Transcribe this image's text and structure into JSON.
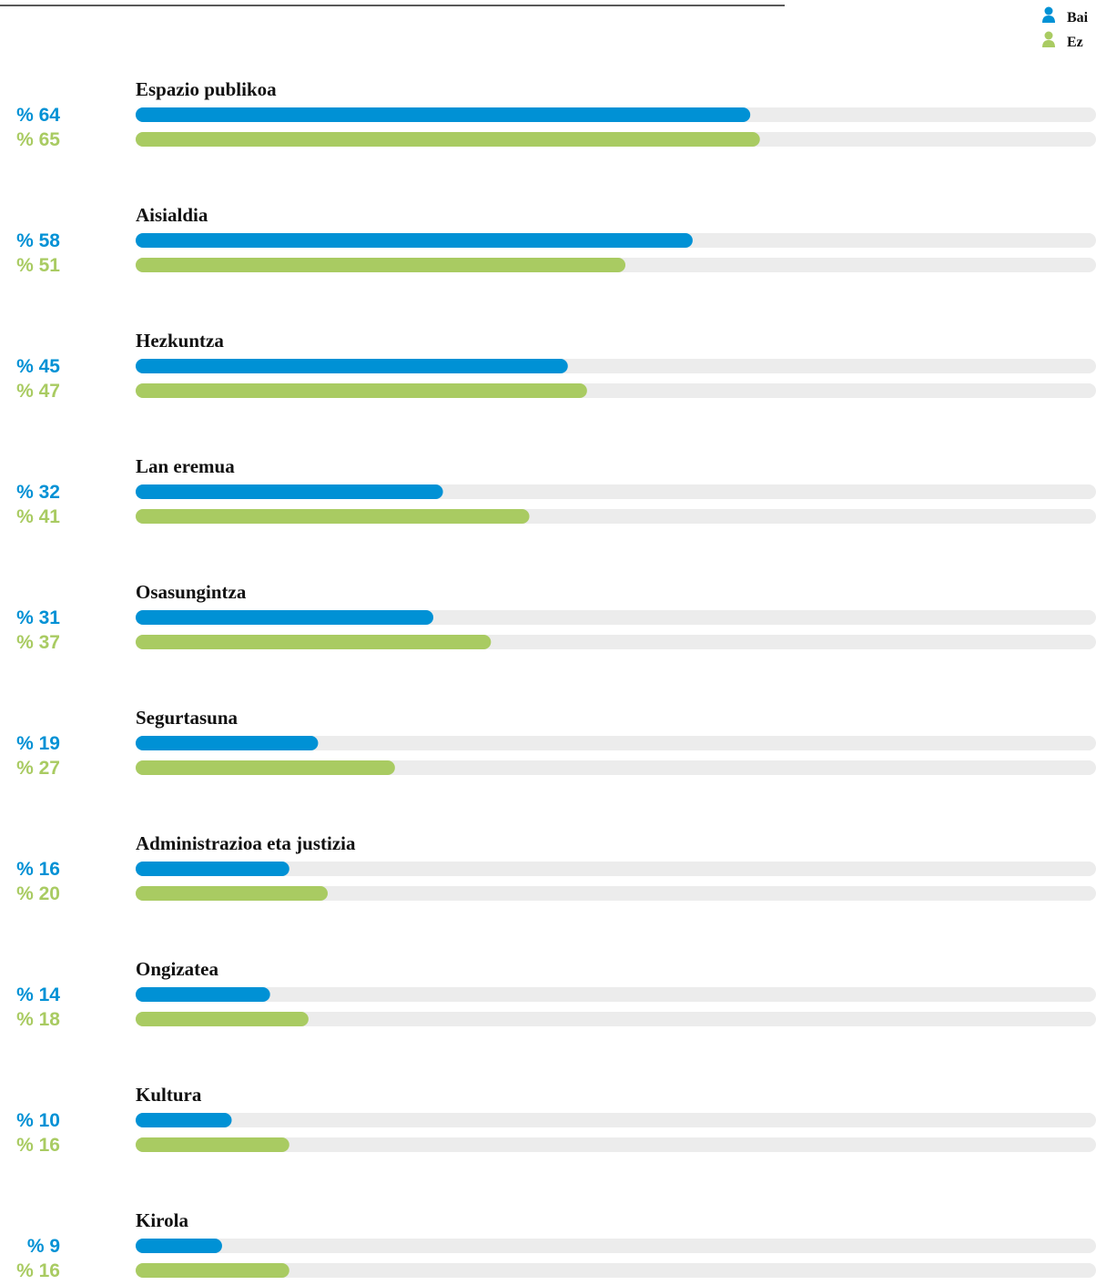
{
  "chart_data": {
    "type": "bar",
    "orientation": "horizontal",
    "categories": [
      "Espazio publikoa",
      "Aisialdia",
      "Hezkuntza",
      "Lan eremua",
      "Osasungintza",
      "Segurtasuna",
      "Administrazioa eta justizia",
      "Ongizatea",
      "Kultura",
      "Kirola"
    ],
    "series": [
      {
        "name": "Bai",
        "color": "#0091d5",
        "values": [
          64,
          58,
          45,
          32,
          31,
          19,
          16,
          14,
          10,
          9
        ],
        "value_labels": [
          "% 64",
          "% 58",
          "% 45",
          "% 32",
          "% 31",
          "% 19",
          "% 16",
          "% 14",
          "% 10",
          "% 9"
        ]
      },
      {
        "name": "Ez",
        "color": "#a9cb62",
        "values": [
          65,
          51,
          47,
          41,
          37,
          27,
          20,
          18,
          16,
          16
        ],
        "value_labels": [
          "% 65",
          "% 51",
          "% 47",
          "% 41",
          "% 37",
          "% 27",
          "% 20",
          "% 18",
          "% 16",
          "% 16"
        ]
      }
    ],
    "xlim": [
      0,
      100
    ],
    "track_color": "#ececec"
  }
}
